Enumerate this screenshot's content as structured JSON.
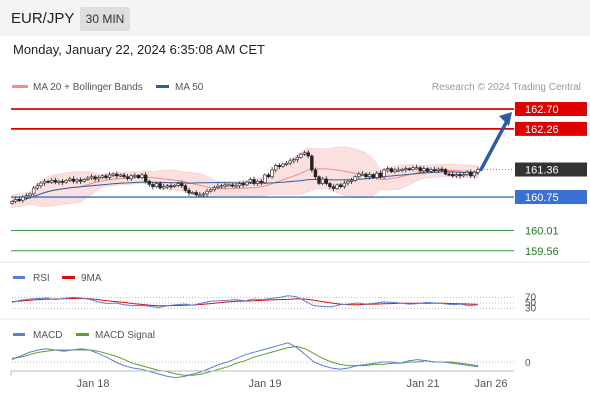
{
  "header": {
    "pair": "EUR/JPY",
    "interval": "30 MIN",
    "datetime": "Monday, January 22, 2024 6:35:08 AM CET"
  },
  "legend": {
    "ma20": "MA 20 + Bollinger Bands",
    "ma50": "MA 50",
    "credit": "Research © 2024 Trading Central",
    "rsi": "RSI",
    "rsi9ma": "9MA",
    "macd": "MACD",
    "macd_signal": "MACD Signal"
  },
  "colors": {
    "resistance": "#e00000",
    "pivot": "#3a6fd6",
    "support": "#3c9a3c",
    "last": "#333333",
    "ma20": "#f08c8c",
    "ma50": "#2d5d9f",
    "band": "#fbe0e0",
    "bull": "#ffffff",
    "bear": "#222222",
    "arrow": "#2d5d9f",
    "rsi": "#5b7fd6",
    "rsi_ma": "#d81010",
    "macd": "#5b7fd6",
    "macd_signal": "#5aa02c"
  },
  "chart_data": [
    {
      "type": "candlestick",
      "panel": "price",
      "y_range": [
        159.4,
        162.9
      ],
      "levels": [
        {
          "label": "162.70",
          "value": 162.7,
          "kind": "resistance"
        },
        {
          "label": "162.26",
          "value": 162.26,
          "kind": "resistance"
        },
        {
          "label": "161.36",
          "value": 161.36,
          "kind": "last"
        },
        {
          "label": "160.75",
          "value": 160.75,
          "kind": "pivot"
        },
        {
          "label": "160.01",
          "value": 160.01,
          "kind": "support"
        },
        {
          "label": "159.56",
          "value": 159.56,
          "kind": "support"
        }
      ],
      "arrow": {
        "from": 161.36,
        "to": 162.7
      },
      "x_ticks": [
        "Jan 18",
        "Jan 19",
        "Jan 21",
        "Jan 26"
      ],
      "closes": [
        160.65,
        160.7,
        160.68,
        160.75,
        160.78,
        160.82,
        160.95,
        161.0,
        161.06,
        161.1,
        161.08,
        161.12,
        161.08,
        161.1,
        161.08,
        161.12,
        161.15,
        161.1,
        161.13,
        161.1,
        161.14,
        161.17,
        161.2,
        161.15,
        161.18,
        161.22,
        161.18,
        161.24,
        161.26,
        161.22,
        161.24,
        161.2,
        161.16,
        161.22,
        161.23,
        161.18,
        161.24,
        161.1,
        161.03,
        160.98,
        161.05,
        160.95,
        160.98,
        161.0,
        160.98,
        161.01,
        161.05,
        161.0,
        160.9,
        160.84,
        160.85,
        160.8,
        160.8,
        160.82,
        160.88,
        160.91,
        160.96,
        160.99,
        161.0,
        161.02,
        161.02,
        161.0,
        161.0,
        161.05,
        161.02,
        161.08,
        161.14,
        161.05,
        161.1,
        161.07,
        161.24,
        161.2,
        161.35,
        161.45,
        161.43,
        161.48,
        161.5,
        161.55,
        161.58,
        161.63,
        161.7,
        161.73,
        161.66,
        161.35,
        161.2,
        161.05,
        161.15,
        161.05,
        160.98,
        160.94,
        161.02,
        160.98,
        161.06,
        161.1,
        161.12,
        161.2,
        161.26,
        161.26,
        161.2,
        161.25,
        161.18,
        161.28,
        161.2,
        161.35,
        161.38,
        161.31,
        161.35,
        161.35,
        161.36,
        161.38,
        161.36,
        161.4,
        161.4,
        161.33,
        161.38,
        161.32,
        161.36,
        161.34,
        161.37,
        161.36,
        161.26,
        161.25,
        161.22,
        161.25,
        161.22,
        161.25,
        161.3,
        161.22,
        161.3,
        161.36
      ]
    },
    {
      "type": "line",
      "panel": "rsi",
      "y_ticks": [
        "70",
        "50",
        "30"
      ],
      "y_range": [
        0,
        100
      ],
      "series": [
        {
          "name": "RSI",
          "values": [
            52,
            60,
            64,
            66,
            68,
            62,
            66,
            70,
            68,
            63,
            54,
            48,
            50,
            44,
            40,
            42,
            38,
            34,
            40,
            44,
            46,
            42,
            50,
            56,
            58,
            60,
            62,
            58,
            64,
            62,
            66,
            70,
            76,
            72,
            56,
            40,
            38,
            36,
            44,
            46,
            50,
            46,
            49,
            54,
            52,
            50,
            46,
            48,
            52,
            50,
            48,
            44,
            46,
            40,
            44
          ]
        },
        {
          "name": "9MA",
          "values": [
            55,
            57,
            60,
            62,
            64,
            64,
            65,
            66,
            66,
            65,
            62,
            58,
            55,
            52,
            48,
            45,
            42,
            40,
            40,
            41,
            42,
            43,
            45,
            48,
            51,
            54,
            56,
            57,
            58,
            60,
            61,
            62,
            63,
            65,
            64,
            60,
            55,
            50,
            46,
            44,
            44,
            45,
            46,
            47,
            48,
            49,
            49,
            49,
            49,
            49,
            49,
            48,
            47,
            46,
            45
          ]
        }
      ]
    },
    {
      "type": "line",
      "panel": "macd",
      "y_ticks": [
        "0"
      ],
      "series": [
        {
          "name": "MACD",
          "values": [
            0.02,
            0.05,
            0.08,
            0.1,
            0.11,
            0.1,
            0.09,
            0.1,
            0.11,
            0.1,
            0.07,
            0.04,
            0.0,
            -0.03,
            -0.05,
            -0.06,
            -0.08,
            -0.1,
            -0.12,
            -0.13,
            -0.12,
            -0.1,
            -0.08,
            -0.05,
            -0.02,
            0.0,
            0.03,
            0.06,
            0.08,
            0.1,
            0.12,
            0.14,
            0.16,
            0.12,
            0.06,
            0.0,
            -0.03,
            -0.05,
            -0.06,
            -0.05,
            -0.03,
            -0.02,
            -0.01,
            0.0,
            0.0,
            -0.01,
            0.01,
            0.02,
            0.01,
            0.0,
            0.0,
            -0.01,
            -0.02,
            -0.03,
            -0.04
          ]
        },
        {
          "name": "MACD Signal",
          "values": [
            0.03,
            0.04,
            0.06,
            0.08,
            0.09,
            0.1,
            0.1,
            0.1,
            0.1,
            0.1,
            0.09,
            0.07,
            0.05,
            0.02,
            -0.01,
            -0.03,
            -0.05,
            -0.07,
            -0.08,
            -0.1,
            -0.11,
            -0.11,
            -0.1,
            -0.08,
            -0.06,
            -0.04,
            -0.01,
            0.01,
            0.04,
            0.06,
            0.08,
            0.1,
            0.12,
            0.13,
            0.11,
            0.07,
            0.03,
            0.0,
            -0.02,
            -0.03,
            -0.03,
            -0.03,
            -0.02,
            -0.02,
            -0.01,
            -0.01,
            0.0,
            0.0,
            0.01,
            0.0,
            0.0,
            0.0,
            -0.01,
            -0.02,
            -0.03
          ]
        }
      ]
    }
  ]
}
